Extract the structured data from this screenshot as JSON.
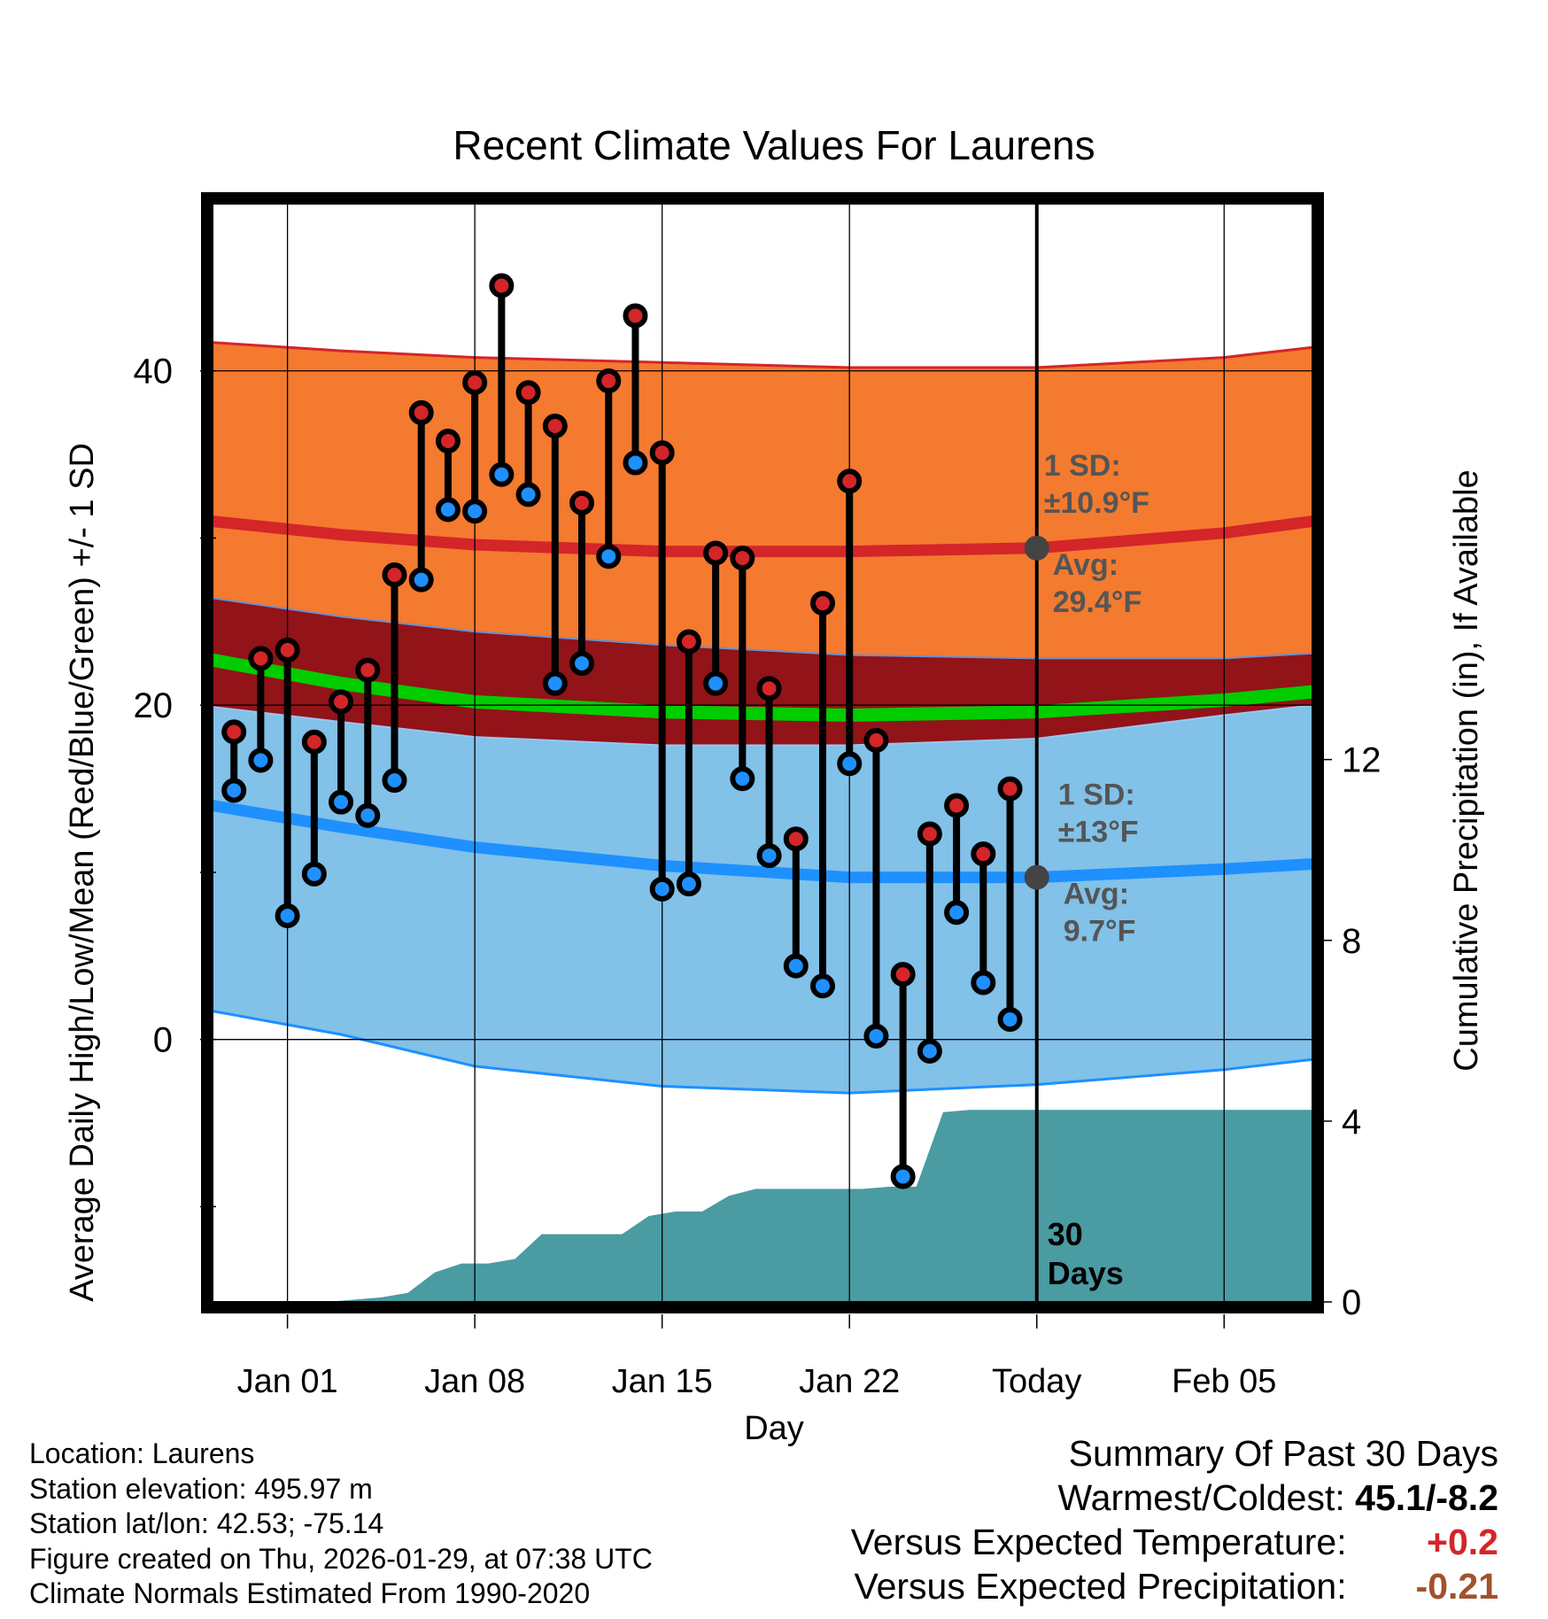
{
  "chart_data": {
    "type": "line",
    "title": "Recent Climate Values For Laurens",
    "xlabel": "Day",
    "ylabel": "Average Daily High/Low/Mean (Red/Blue/Green) +/- 1 SD",
    "y2label": "Cumulative Precipitation (in), If Available",
    "xlim": [
      -2.8,
      38.3
    ],
    "ylim": [
      -15.7,
      50
    ],
    "y2lim": [
      0,
      24.3
    ],
    "y_ticks": [
      -10,
      0,
      10,
      20,
      30,
      40
    ],
    "y_tick_labels": [
      "0",
      "20",
      "40"
    ],
    "y_tick_label_values": [
      0,
      20,
      40
    ],
    "y2_ticks": [
      0,
      4,
      8,
      12
    ],
    "y2_tick_labels": [
      "0",
      "4",
      "8",
      "12"
    ],
    "x_ticks": [
      0,
      7,
      14,
      21,
      28,
      35
    ],
    "x_tick_labels": [
      "Jan 01",
      "Jan 08",
      "Jan 15",
      "Jan 22",
      "Today",
      "Feb 05"
    ],
    "grid": true,
    "today_x": 28,
    "window_label": [
      "30",
      "Days"
    ],
    "normals": {
      "x": [
        -2.8,
        2,
        7,
        14,
        21,
        28,
        35,
        38.3
      ],
      "high_upper": [
        41.7,
        41.2,
        40.8,
        40.5,
        40.2,
        40.2,
        40.8,
        41.4
      ],
      "high_mean": [
        31.0,
        30.2,
        29.6,
        29.2,
        29.2,
        29.4,
        30.3,
        31.0
      ],
      "high_lower": [
        26.4,
        25.3,
        24.4,
        23.6,
        23.0,
        22.8,
        22.8,
        23.1
      ],
      "mean": [
        22.7,
        21.3,
        20.2,
        19.6,
        19.4,
        19.6,
        20.3,
        20.8
      ],
      "low_upper": [
        19.9,
        19.0,
        18.1,
        17.6,
        17.6,
        18.0,
        19.4,
        20.0
      ],
      "low_mean": [
        14.0,
        12.7,
        11.5,
        10.4,
        9.7,
        9.7,
        10.2,
        10.5
      ],
      "low_lower": [
        1.7,
        0.3,
        -1.6,
        -2.8,
        -3.2,
        -2.7,
        -1.8,
        -1.2
      ]
    },
    "annotations": {
      "high_sd": [
        "1 SD:",
        "±10.9°F"
      ],
      "high_avg": [
        "Avg:",
        "29.4°F"
      ],
      "low_sd": [
        "1 SD:",
        "±13°F"
      ],
      "low_avg": [
        "Avg:",
        "9.7°F"
      ],
      "high_avg_value": 29.4,
      "low_avg_value": 9.7
    },
    "series": [
      {
        "name": "High",
        "x": [
          -2,
          -1,
          0,
          1,
          2,
          3,
          4,
          5,
          6,
          7,
          8,
          9,
          10,
          11,
          12,
          13,
          14,
          15,
          16,
          17,
          18,
          19,
          20,
          21,
          22,
          23,
          24,
          25,
          26,
          27
        ],
        "values": [
          18.4,
          22.8,
          23.3,
          17.8,
          20.2,
          22.1,
          27.8,
          37.5,
          35.8,
          39.3,
          45.1,
          38.7,
          36.7,
          32.1,
          39.4,
          43.3,
          35.1,
          23.8,
          29.1,
          28.8,
          21.0,
          12.0,
          26.1,
          33.4,
          17.9,
          3.9,
          12.3,
          14.0,
          11.1,
          15.0
        ]
      },
      {
        "name": "Low",
        "x": [
          -2,
          -1,
          0,
          1,
          2,
          3,
          4,
          5,
          6,
          7,
          8,
          9,
          10,
          11,
          12,
          13,
          14,
          15,
          16,
          17,
          18,
          19,
          20,
          21,
          22,
          23,
          24,
          25,
          26,
          27
        ],
        "values": [
          14.9,
          16.7,
          7.4,
          9.9,
          14.2,
          13.4,
          15.5,
          27.5,
          31.7,
          31.6,
          33.8,
          32.6,
          21.3,
          22.5,
          28.9,
          34.5,
          9.0,
          9.3,
          21.3,
          15.6,
          11.0,
          4.4,
          3.2,
          16.5,
          0.2,
          -8.2,
          -0.7,
          7.6,
          3.4,
          1.2
        ]
      },
      {
        "name": "Cumulative Precipitation",
        "x": [
          -2.8,
          1.5,
          2.5,
          3.5,
          4.5,
          5.5,
          6.5,
          7.5,
          8.5,
          9.5,
          10.5,
          11.5,
          12.5,
          13.5,
          14.5,
          15.5,
          16.5,
          17.5,
          18.5,
          19.5,
          20.5,
          21.5,
          22.5,
          23.5,
          24.5,
          25.5,
          26.5,
          38.3
        ],
        "values": [
          0,
          0,
          0.05,
          0.1,
          0.2,
          0.65,
          0.85,
          0.85,
          0.95,
          1.5,
          1.5,
          1.5,
          1.5,
          1.9,
          2.0,
          2.0,
          2.35,
          2.5,
          2.5,
          2.5,
          2.5,
          2.5,
          2.55,
          2.55,
          4.2,
          4.25,
          4.25,
          4.25
        ]
      }
    ],
    "colors": {
      "high_band": "#F47A2F",
      "high_line": "#D42529",
      "overlap_band": "#921318",
      "mean_line": "#00CC00",
      "low_band": "#82C1E8",
      "low_line": "#1E90FF",
      "precip": "#4A9BA2",
      "high_marker": "#D42529",
      "low_marker": "#1E90FF",
      "annotation": "#555555"
    }
  },
  "footer": {
    "location": "Location: Laurens",
    "elevation": "Station elevation: 495.97 m",
    "latlon": "Station lat/lon: 42.53; -75.14",
    "created": "Figure created on Thu, 2026-01-29, at 07:38 UTC",
    "normals": "Climate Normals Estimated From 1990-2020"
  },
  "summary": {
    "title": "Summary Of Past 30 Days",
    "warm_cold_label": "Warmest/Coldest:",
    "warm_cold_value": "45.1/-8.2",
    "temp_label": "Versus Expected Temperature:",
    "temp_value": "+0.2",
    "temp_color": "#D42529",
    "precip_label": "Versus Expected Precipitation:",
    "precip_value": "-0.21",
    "precip_color": "#A0522D"
  }
}
